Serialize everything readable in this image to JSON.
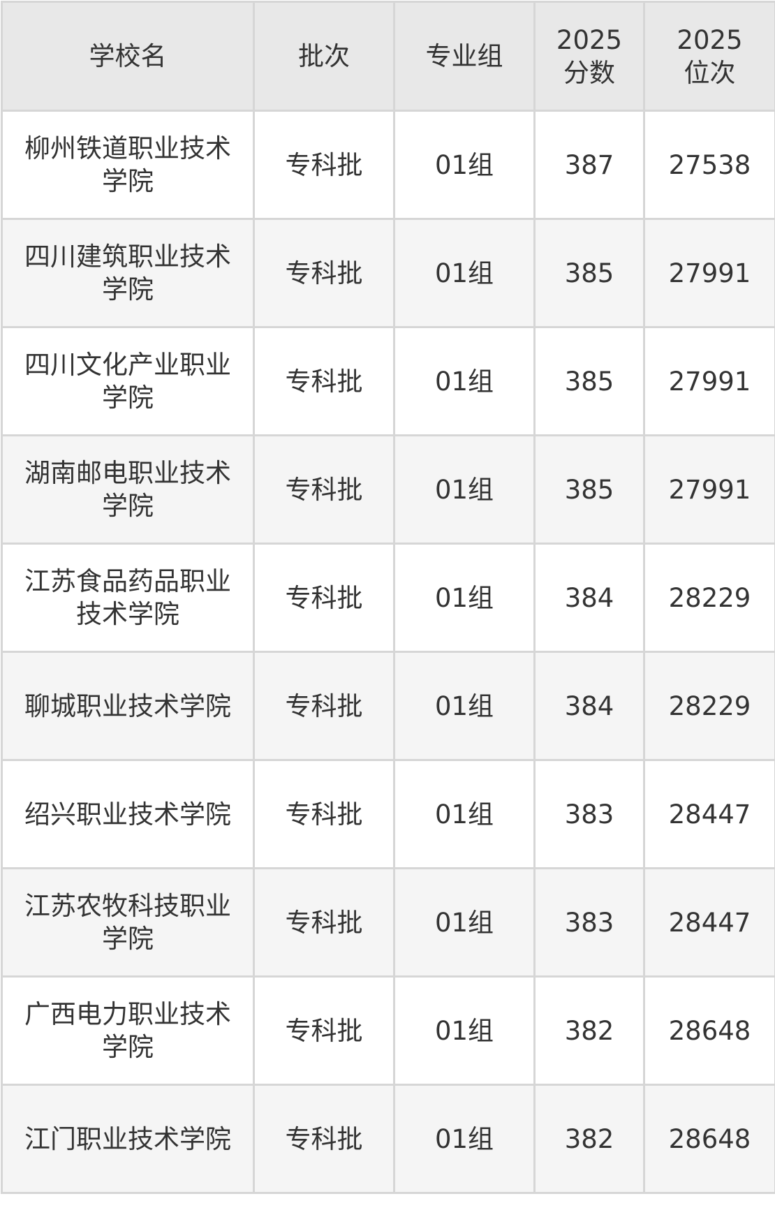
{
  "table": {
    "headers": [
      "学校名",
      "批次",
      "专业组",
      "2025\n分数",
      "2025\n位次"
    ],
    "rows": [
      [
        "柳州铁道职业技术学院",
        "专科批",
        "01组",
        "387",
        "27538"
      ],
      [
        "四川建筑职业技术学院",
        "专科批",
        "01组",
        "385",
        "27991"
      ],
      [
        "四川文化产业职业学院",
        "专科批",
        "01组",
        "385",
        "27991"
      ],
      [
        "湖南邮电职业技术学院",
        "专科批",
        "01组",
        "385",
        "27991"
      ],
      [
        "江苏食品药品职业技术学院",
        "专科批",
        "01组",
        "384",
        "28229"
      ],
      [
        "聊城职业技术学院",
        "专科批",
        "01组",
        "384",
        "28229"
      ],
      [
        "绍兴职业技术学院",
        "专科批",
        "01组",
        "383",
        "28447"
      ],
      [
        "江苏农牧科技职业学院",
        "专科批",
        "01组",
        "383",
        "28447"
      ],
      [
        "广西电力职业技术学院",
        "专科批",
        "01组",
        "382",
        "28648"
      ],
      [
        "江门职业技术学院",
        "专科批",
        "01组",
        "382",
        "28648"
      ]
    ]
  }
}
